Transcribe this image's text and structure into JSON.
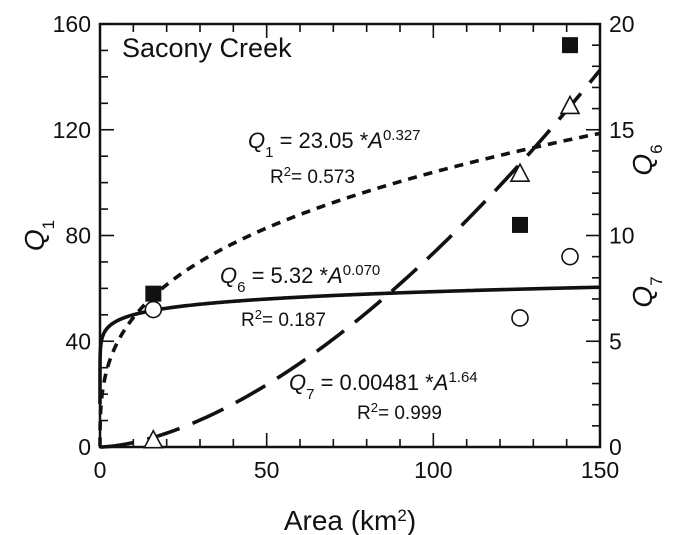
{
  "chart_data": {
    "type": "scatter",
    "title": "Sacony Creek",
    "x_axis": {
      "label": "Area (km",
      "label_sup": "2",
      "label_end": ")",
      "lim": [
        0,
        150
      ],
      "ticks": [
        0,
        50,
        100,
        150
      ],
      "minor_step": 10
    },
    "y_left": {
      "label_base": "Q",
      "label_sub": "1",
      "lim": [
        0,
        160
      ],
      "ticks": [
        0,
        40,
        80,
        120,
        160
      ],
      "minor_step": 10
    },
    "y_right": {
      "labels": [
        {
          "base": "Q",
          "sub": "6"
        },
        {
          "base": "Q",
          "sub": "7"
        }
      ],
      "lim": [
        0,
        20
      ],
      "ticks": [
        0,
        5,
        10,
        15,
        20
      ],
      "minor_step": 1
    },
    "series": [
      {
        "name": "Q1",
        "marker": "square-filled",
        "axis": "left",
        "x": [
          16,
          126,
          141
        ],
        "y": [
          58,
          84,
          152
        ],
        "fit": {
          "coef": 23.05,
          "exp": 0.327,
          "dash": "dotted",
          "equation": {
            "var": "Q",
            "sub": "1",
            "text": " = 23.05 *",
            "A": "A",
            "exp": "0.327"
          },
          "r2": {
            "base": "R",
            "sup": "2",
            "text": "= 0.573"
          }
        }
      },
      {
        "name": "Q6",
        "marker": "circle-open",
        "axis": "right",
        "x": [
          16,
          126,
          141
        ],
        "y": [
          6.5,
          6.1,
          9.0
        ],
        "fit": {
          "coef": 5.32,
          "exp": 0.07,
          "dash": "solid",
          "equation": {
            "var": "Q",
            "sub": "6",
            "text": " = 5.32 *",
            "A": "A",
            "exp": "0.070"
          },
          "r2": {
            "base": "R",
            "sup": "2",
            "text": "= 0.187"
          }
        }
      },
      {
        "name": "Q7",
        "marker": "triangle-open",
        "axis": "right",
        "x": [
          16,
          126,
          141
        ],
        "y": [
          0.3,
          12.9,
          16.1
        ],
        "fit": {
          "coef": 0.00481,
          "exp": 1.64,
          "dash": "long-dash",
          "equation": {
            "var": "Q",
            "sub": "7",
            "text": " = 0.00481 *",
            "A": "A",
            "exp": "1.64"
          },
          "r2": {
            "base": "R",
            "sup": "2",
            "text": "= 0.999"
          }
        }
      }
    ],
    "grid": false,
    "legend": "none"
  }
}
